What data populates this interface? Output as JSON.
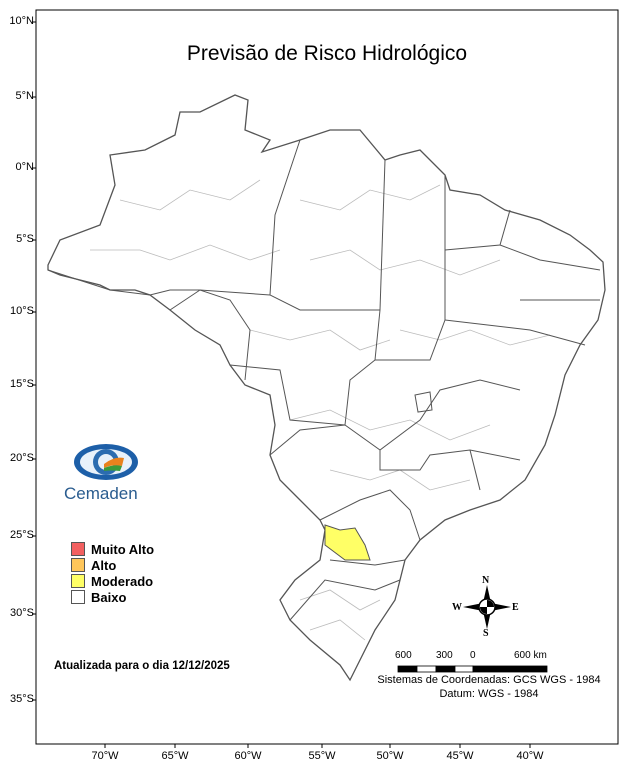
{
  "title": "Previsão de Risco Hidrológico",
  "latitude_labels": [
    "10°N",
    "5°N",
    "0°N",
    "5°S",
    "10°S",
    "15°S",
    "20°S",
    "25°S",
    "30°S",
    "35°S"
  ],
  "longitude_labels": [
    "70°W",
    "65°W",
    "60°W",
    "55°W",
    "50°W",
    "45°W",
    "40°W"
  ],
  "logo": {
    "text": "Cemaden"
  },
  "legend": [
    {
      "label": "Muito Alto",
      "color": "#f26060"
    },
    {
      "label": "Alto",
      "color": "#ffc65a"
    },
    {
      "label": "Moderado",
      "color": "#ffff66"
    },
    {
      "label": "Baixo",
      "color": "#ffffff"
    }
  ],
  "updated": "Atualizada para o dia 12/12/2025",
  "compass": {
    "n": "N",
    "s": "S",
    "e": "E",
    "w": "W"
  },
  "scale": {
    "labels": [
      "600",
      "300",
      "0",
      "600 km"
    ]
  },
  "coordinate_system": "Sistemas de Coordenadas: GCS WGS - 1984",
  "datum": "Datum: WGS - 1984",
  "highlighted_regions": [
    {
      "risk": "Moderado",
      "location": "western Paraná"
    }
  ]
}
